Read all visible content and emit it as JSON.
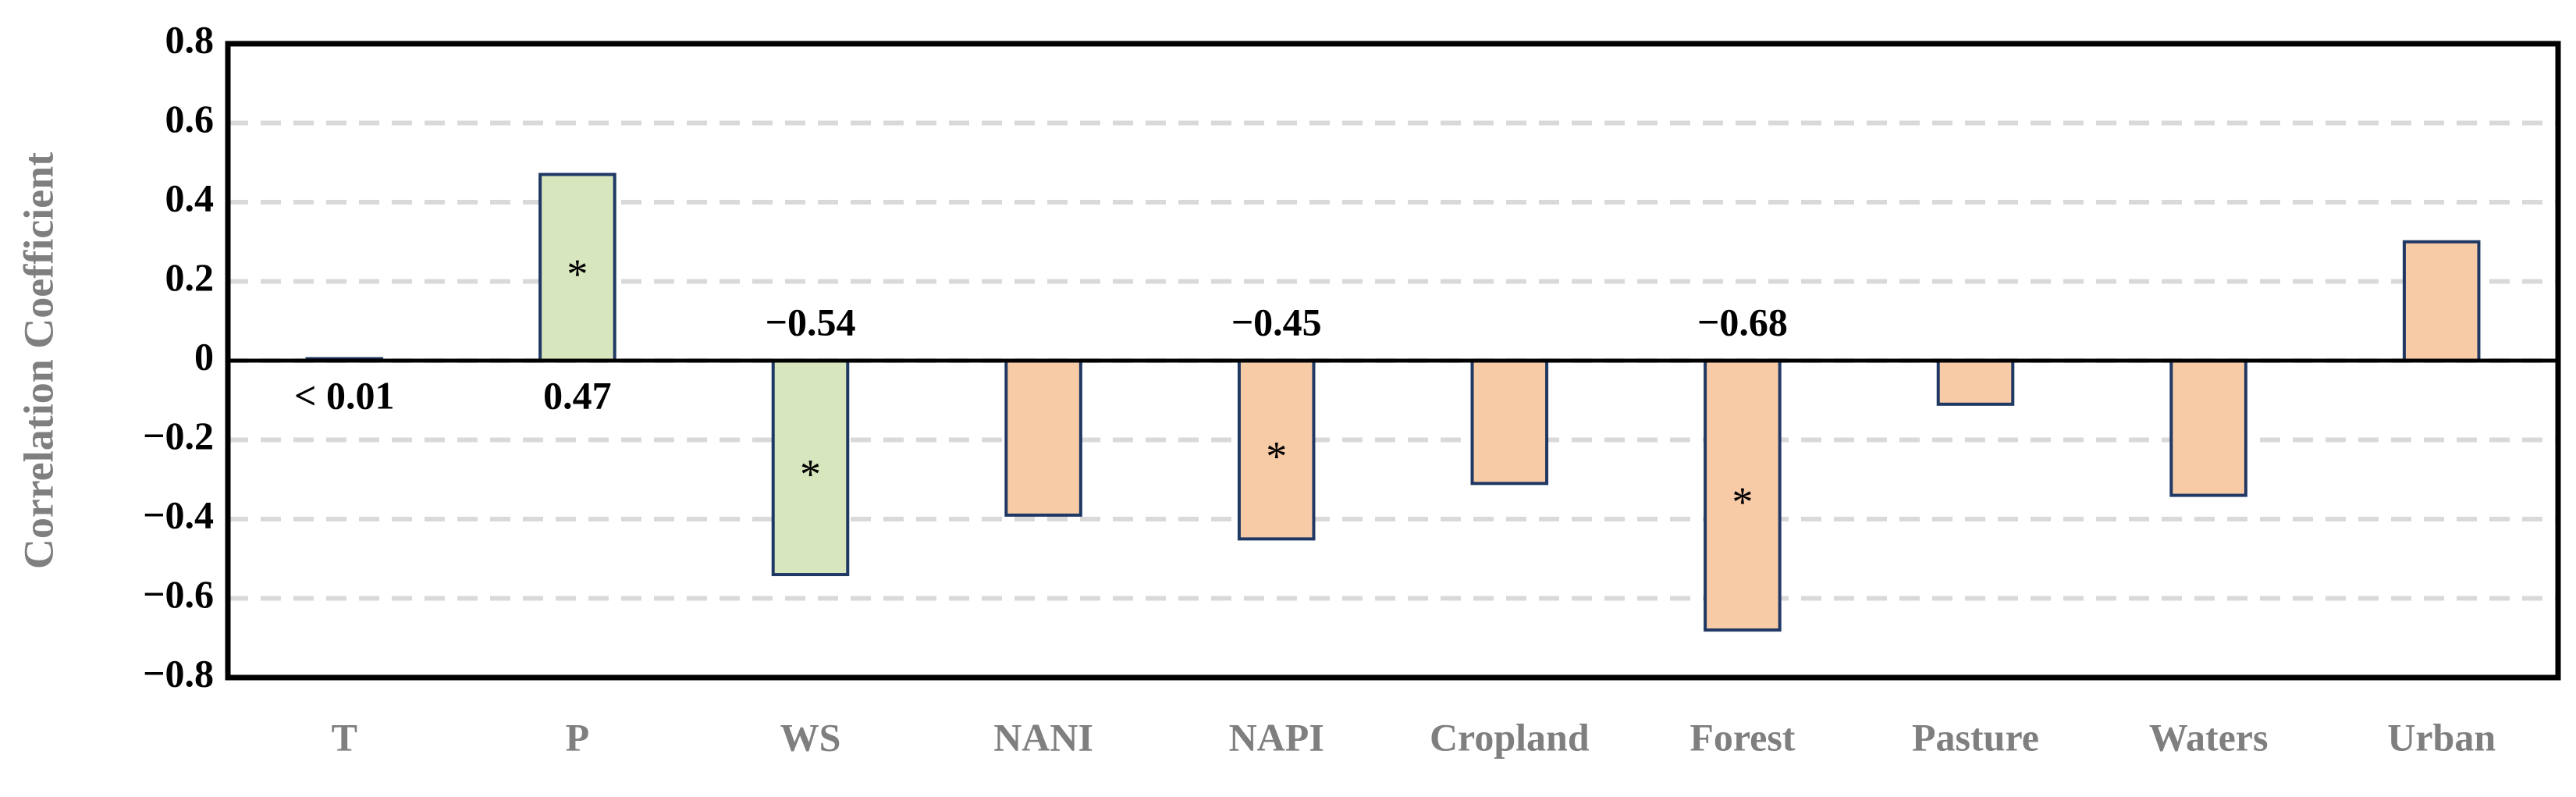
{
  "chart_data": {
    "type": "bar",
    "y_label": "Correlation Coefficient",
    "categories": [
      "T",
      "P",
      "WS",
      "NANI",
      "NAPI",
      "Cropland",
      "Forest",
      "Pasture",
      "Waters",
      "Urban"
    ],
    "values": [
      0.005,
      0.47,
      -0.54,
      -0.39,
      -0.45,
      -0.31,
      -0.68,
      -0.11,
      -0.34,
      0.3
    ],
    "value_labels": [
      "< 0.01",
      "0.47",
      "−0.54",
      null,
      "−0.45",
      null,
      "−0.68",
      null,
      null,
      null
    ],
    "colors": [
      "#f8cba7",
      "#d8e6bd",
      "#d8e6bd",
      "#f8cba7",
      "#f8cba7",
      "#f8cba7",
      "#f8cba7",
      "#f8cba7",
      "#f8cba7",
      "#f8cba7"
    ],
    "edge_color": "#1f3864",
    "significant": [
      false,
      true,
      true,
      false,
      true,
      false,
      true,
      false,
      false,
      false
    ],
    "significance_marker": "*",
    "ylim": [
      -0.8,
      0.8
    ],
    "yticks": [
      0.8,
      0.6,
      0.4,
      0.2,
      0,
      {
        "value": -0.2,
        "label": "−0.2"
      },
      {
        "value": -0.4,
        "label": "−0.4"
      },
      {
        "value": -0.6,
        "label": "−0.6"
      },
      {
        "value": -0.8,
        "label": "−0.8"
      }
    ],
    "grid": true
  }
}
